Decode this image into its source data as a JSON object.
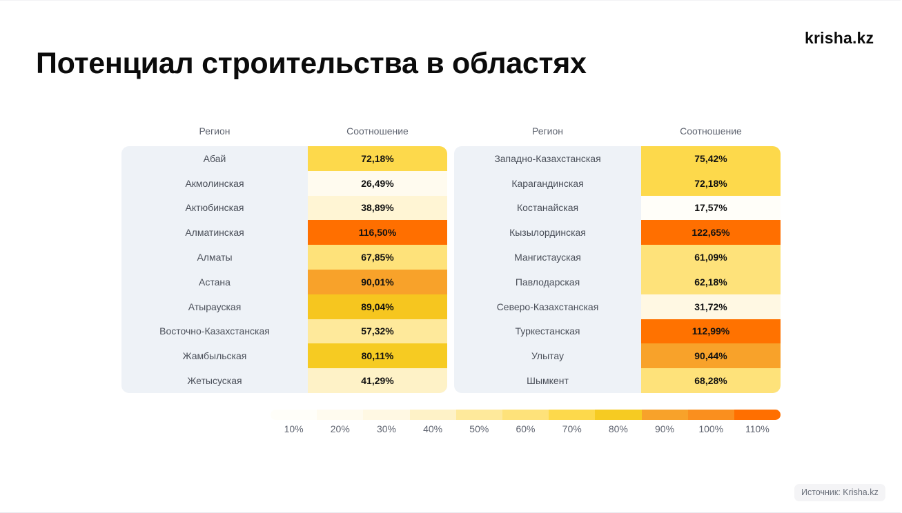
{
  "title": "Потенциал строительства в областях",
  "logo": "krisha.kz",
  "source": "Источник: Krisha.kz",
  "chart_data": {
    "type": "table",
    "title": "Потенциал строительства в областях",
    "columns": [
      "Регион",
      "Соотношение"
    ],
    "left_table": [
      {
        "region": "Абай",
        "value_label": "72,18%",
        "value": 72.18,
        "color": "#FDD94B"
      },
      {
        "region": "Акмолинская",
        "value_label": "26,49%",
        "value": 26.49,
        "color": "#FFFBEF"
      },
      {
        "region": "Актюбинская",
        "value_label": "38,89%",
        "value": 38.89,
        "color": "#FFF5D4"
      },
      {
        "region": "Алматинская",
        "value_label": "116,50%",
        "value": 116.5,
        "color": "#FF6F00"
      },
      {
        "region": "Алматы",
        "value_label": "67,85%",
        "value": 67.85,
        "color": "#FEE27A"
      },
      {
        "region": "Астана",
        "value_label": "90,01%",
        "value": 90.01,
        "color": "#F8A22A"
      },
      {
        "region": "Атырауская",
        "value_label": "89,04%",
        "value": 89.04,
        "color": "#F6C61F"
      },
      {
        "region": "Восточно-Казахстанская",
        "value_label": "57,32%",
        "value": 57.32,
        "color": "#FEE99B"
      },
      {
        "region": "Жамбыльская",
        "value_label": "80,11%",
        "value": 80.11,
        "color": "#F6CB22"
      },
      {
        "region": "Жетысуская",
        "value_label": "41,29%",
        "value": 41.29,
        "color": "#FEF2C7"
      }
    ],
    "right_table": [
      {
        "region": "Западно-Казахстанская",
        "value_label": "75,42%",
        "value": 75.42,
        "color": "#FDD94B"
      },
      {
        "region": "Карагандинская",
        "value_label": "72,18%",
        "value": 72.18,
        "color": "#FDD94B"
      },
      {
        "region": "Костанайская",
        "value_label": "17,57%",
        "value": 17.57,
        "color": "#FFFEF9"
      },
      {
        "region": "Кызылординская",
        "value_label": "122,65%",
        "value": 122.65,
        "color": "#FF6F00"
      },
      {
        "region": "Мангистауская",
        "value_label": "61,09%",
        "value": 61.09,
        "color": "#FEE27A"
      },
      {
        "region": "Павлодарская",
        "value_label": "62,18%",
        "value": 62.18,
        "color": "#FEE27A"
      },
      {
        "region": "Северо-Казахстанская",
        "value_label": "31,72%",
        "value": 31.72,
        "color": "#FFF8E3"
      },
      {
        "region": "Туркестанская",
        "value_label": "112,99%",
        "value": 112.99,
        "color": "#FF7200"
      },
      {
        "region": "Улытау",
        "value_label": "90,44%",
        "value": 90.44,
        "color": "#F8A22A"
      },
      {
        "region": "Шымкент",
        "value_label": "68,28%",
        "value": 68.28,
        "color": "#FEE27A"
      }
    ],
    "legend": {
      "labels": [
        "10%",
        "20%",
        "30%",
        "40%",
        "50%",
        "60%",
        "70%",
        "80%",
        "90%",
        "100%",
        "110%"
      ],
      "colors": [
        "#FFFEF9",
        "#FFFBEF",
        "#FFF8E3",
        "#FEF2C7",
        "#FEE99B",
        "#FEE27A",
        "#FDD94B",
        "#F6CB22",
        "#F8A22A",
        "#FA8F1E",
        "#FF6F00"
      ]
    }
  }
}
